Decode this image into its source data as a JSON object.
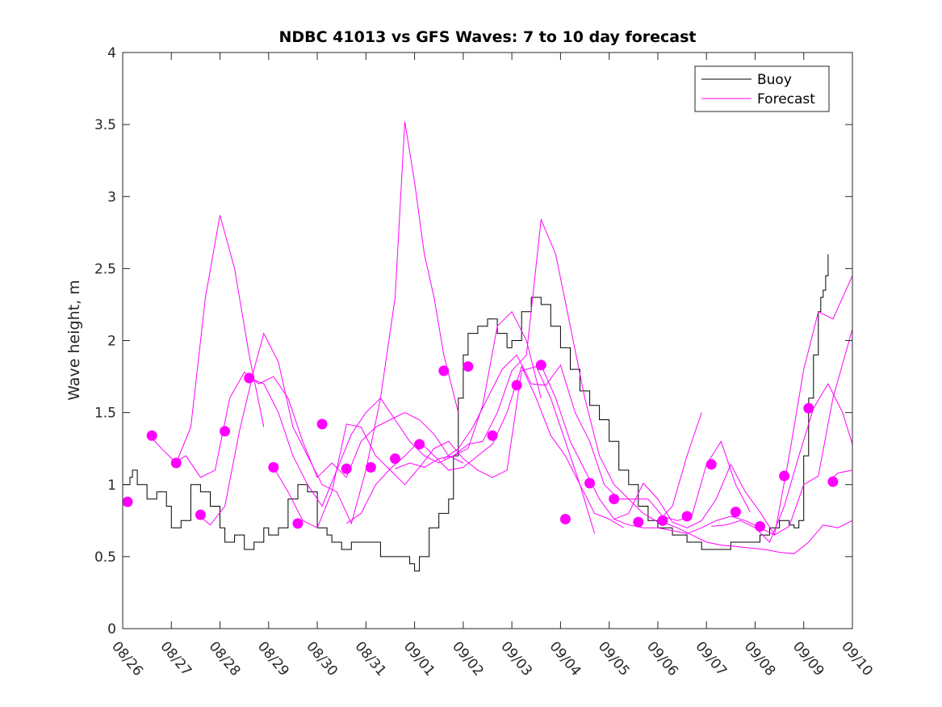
{
  "chart_data": {
    "type": "line",
    "title": "NDBC 41013 vs GFS Waves: 7 to 10 day forecast",
    "xlabel": "",
    "ylabel": "Wave height, m",
    "xlim_days": [
      0,
      15
    ],
    "ylim": [
      0,
      4
    ],
    "yticks": [
      0,
      0.5,
      1,
      1.5,
      2,
      2.5,
      3,
      3.5,
      4
    ],
    "ytick_labels": [
      "0",
      "0.5",
      "1",
      "1.5",
      "2",
      "2.5",
      "3",
      "3.5",
      "4"
    ],
    "xtick_labels": [
      "08/26",
      "08/27",
      "08/28",
      "08/29",
      "08/30",
      "08/31",
      "09/01",
      "09/02",
      "09/03",
      "09/04",
      "09/05",
      "09/06",
      "09/07",
      "09/08",
      "09/09",
      "09/10"
    ],
    "grid": false,
    "legend": {
      "placement": "top-right",
      "entries": [
        {
          "label": "Buoy",
          "color": "#000000"
        },
        {
          "label": "Forecast",
          "color": "#ff00ff"
        }
      ]
    },
    "colors": {
      "buoy": "#000000",
      "forecast": "#ff00ff",
      "axis": "#262626"
    },
    "series": [
      {
        "name": "Buoy",
        "x_days": [
          0,
          0.15,
          0.2,
          0.3,
          0.4,
          0.5,
          0.7,
          0.9,
          1.0,
          1.2,
          1.4,
          1.6,
          1.8,
          2.0,
          2.1,
          2.3,
          2.5,
          2.7,
          2.9,
          3.0,
          3.2,
          3.4,
          3.6,
          3.8,
          4.0,
          4.2,
          4.3,
          4.5,
          4.7,
          5.0,
          5.3,
          5.6,
          5.8,
          5.9,
          6.0,
          6.1,
          6.3,
          6.5,
          6.6,
          6.7,
          6.8,
          6.9,
          7.0,
          7.1,
          7.3,
          7.5,
          7.7,
          7.9,
          8.0,
          8.2,
          8.4,
          8.6,
          8.8,
          9.0,
          9.2,
          9.4,
          9.6,
          9.8,
          10.0,
          10.2,
          10.4,
          10.6,
          10.8,
          11.0,
          11.3,
          11.6,
          11.9,
          12.2,
          12.5,
          12.8,
          13.1,
          13.3,
          13.5,
          13.6,
          13.7,
          13.8,
          13.9,
          14.0,
          14.1,
          14.2,
          14.3,
          14.35,
          14.4,
          14.45,
          14.5
        ],
        "y": [
          1.0,
          1.05,
          1.1,
          1.0,
          1.0,
          0.9,
          0.95,
          0.85,
          0.7,
          0.75,
          1.0,
          0.95,
          0.85,
          0.7,
          0.6,
          0.65,
          0.55,
          0.6,
          0.7,
          0.65,
          0.7,
          0.9,
          1.0,
          0.95,
          0.7,
          0.65,
          0.6,
          0.55,
          0.6,
          0.6,
          0.5,
          0.5,
          0.5,
          0.45,
          0.4,
          0.5,
          0.7,
          0.8,
          0.8,
          0.9,
          1.2,
          1.6,
          1.9,
          2.05,
          2.1,
          2.15,
          2.05,
          1.95,
          2.0,
          2.2,
          2.3,
          2.25,
          2.1,
          1.95,
          1.8,
          1.65,
          1.55,
          1.45,
          1.3,
          1.1,
          1.0,
          0.85,
          0.75,
          0.7,
          0.65,
          0.6,
          0.55,
          0.55,
          0.6,
          0.6,
          0.65,
          0.7,
          0.75,
          0.75,
          0.72,
          0.7,
          0.75,
          1.2,
          1.6,
          1.9,
          2.2,
          2.3,
          2.35,
          2.45,
          2.6
        ]
      },
      {
        "name": "Forecast run 1",
        "x_days": [
          0.55,
          0.8,
          1.1,
          1.4,
          1.7,
          2.0,
          2.3,
          2.6,
          2.9
        ],
        "y": [
          1.34,
          1.25,
          1.15,
          1.4,
          2.3,
          2.87,
          2.5,
          1.9,
          1.4
        ]
      },
      {
        "name": "Forecast run 2",
        "x_days": [
          1.05,
          1.3,
          1.6,
          1.9,
          2.2,
          2.5,
          2.8,
          3.1,
          3.4,
          3.7,
          4.0,
          4.3,
          4.6,
          4.9,
          5.2,
          5.5,
          5.8,
          6.1,
          6.4,
          6.7,
          7.0
        ],
        "y": [
          1.15,
          1.2,
          1.05,
          1.1,
          1.6,
          1.78,
          1.7,
          1.75,
          1.6,
          1.3,
          1.05,
          1.15,
          1.05,
          1.3,
          1.4,
          1.45,
          1.5,
          1.45,
          1.35,
          1.2,
          1.15
        ]
      },
      {
        "name": "Forecast run 3",
        "x_days": [
          1.55,
          1.8,
          2.1,
          2.4,
          2.7,
          2.9,
          3.2,
          3.5,
          3.8,
          4.1,
          4.4,
          4.7,
          5.0,
          5.3,
          5.6,
          5.8,
          6.0,
          6.2,
          6.4,
          6.6,
          6.9
        ],
        "y": [
          0.79,
          0.72,
          0.85,
          1.37,
          1.8,
          2.05,
          1.85,
          1.4,
          1.2,
          1.0,
          0.95,
          0.73,
          1.1,
          1.6,
          2.3,
          3.52,
          3.1,
          2.6,
          2.3,
          1.9,
          1.5
        ]
      },
      {
        "name": "Forecast run 4",
        "x_days": [
          2.6,
          2.9,
          3.2,
          3.5,
          3.8,
          4.1,
          4.4,
          4.7,
          5.0,
          5.3,
          5.6,
          5.9,
          6.2,
          6.5,
          6.8,
          7.1,
          7.4,
          7.7,
          8.0,
          8.3,
          8.6
        ],
        "y": [
          1.74,
          1.7,
          1.5,
          1.2,
          1.0,
          0.85,
          1.1,
          1.35,
          1.5,
          1.6,
          1.45,
          1.3,
          1.2,
          1.15,
          1.2,
          1.25,
          1.55,
          2.1,
          2.2,
          2.0,
          1.6
        ]
      },
      {
        "name": "Forecast run 5",
        "x_days": [
          3.1,
          3.4,
          3.7,
          4.0,
          4.3,
          4.6,
          4.9,
          5.2,
          5.5,
          5.8,
          6.1,
          6.4,
          6.7,
          7.0,
          7.3,
          7.6,
          7.9,
          8.2,
          8.5,
          8.8,
          9.1,
          9.4,
          9.7
        ],
        "y": [
          1.12,
          0.95,
          0.75,
          0.7,
          0.95,
          1.42,
          1.4,
          1.2,
          1.1,
          1.0,
          1.12,
          1.25,
          1.3,
          1.18,
          1.1,
          1.05,
          1.1,
          1.79,
          1.82,
          1.6,
          1.3,
          1.0,
          0.66
        ]
      },
      {
        "name": "Forecast run 6",
        "x_days": [
          4.6,
          4.9,
          5.2,
          5.5,
          5.8,
          6.1,
          6.4,
          6.7,
          7.0,
          7.3,
          7.6,
          7.9,
          8.2,
          8.5,
          8.8,
          9.1,
          9.4,
          9.7,
          10.0,
          10.3
        ],
        "y": [
          0.73,
          0.8,
          1.0,
          1.11,
          1.2,
          1.3,
          1.2,
          1.1,
          1.12,
          1.2,
          1.28,
          1.5,
          1.82,
          1.6,
          1.34,
          1.2,
          1.0,
          0.8,
          0.76,
          0.7
        ]
      },
      {
        "name": "Forecast run 7",
        "x_days": [
          5.6,
          5.9,
          6.2,
          6.5,
          6.8,
          7.1,
          7.4,
          7.7,
          8.0,
          8.3,
          8.6,
          8.9,
          9.2,
          9.5,
          9.8,
          10.1,
          10.4,
          10.7,
          11.0,
          11.3,
          11.6,
          11.9
        ],
        "y": [
          1.11,
          1.15,
          1.12,
          1.18,
          1.2,
          1.28,
          1.3,
          1.5,
          1.79,
          1.9,
          2.84,
          2.6,
          2.1,
          1.6,
          1.2,
          1.0,
          0.9,
          0.8,
          0.74,
          0.85,
          1.2,
          1.5
        ]
      },
      {
        "name": "Forecast run 8",
        "x_days": [
          6.6,
          6.9,
          7.2,
          7.5,
          7.8,
          8.1,
          8.4,
          8.7,
          9.0,
          9.3,
          9.6,
          9.9,
          10.2,
          10.5,
          10.8,
          11.1,
          11.4,
          11.7,
          12.0,
          12.3,
          12.6,
          12.9
        ],
        "y": [
          1.18,
          1.25,
          1.4,
          1.6,
          1.8,
          1.9,
          1.7,
          1.69,
          1.83,
          1.5,
          1.3,
          1.0,
          0.9,
          0.9,
          0.9,
          0.78,
          0.75,
          0.78,
          1.14,
          1.3,
          1.0,
          0.81
        ]
      },
      {
        "name": "Forecast run 9",
        "x_days": [
          8.6,
          8.9,
          9.2,
          9.5,
          9.8,
          10.1,
          10.4,
          10.7,
          11.0,
          11.3,
          11.6,
          11.9,
          12.2,
          12.5,
          12.8,
          13.1,
          13.4,
          13.7,
          14.0,
          14.3,
          14.6,
          15.0
        ],
        "y": [
          1.83,
          1.6,
          1.3,
          1.1,
          0.9,
          0.76,
          0.8,
          1.01,
          0.9,
          0.74,
          0.7,
          0.75,
          0.9,
          1.14,
          0.95,
          0.81,
          0.65,
          0.71,
          1.0,
          1.06,
          1.6,
          2.08
        ]
      },
      {
        "name": "Forecast run 10",
        "x_days": [
          10.1,
          10.4,
          10.7,
          11.0,
          11.3,
          11.6,
          11.9,
          12.2,
          12.5,
          12.8,
          13.1,
          13.4,
          13.7,
          14.0,
          14.3,
          14.6,
          15.0
        ],
        "y": [
          0.76,
          0.72,
          0.7,
          0.7,
          0.68,
          0.66,
          0.7,
          0.75,
          0.78,
          0.75,
          0.7,
          0.65,
          1.2,
          1.8,
          2.2,
          2.15,
          2.45
        ]
      },
      {
        "name": "Forecast run 11",
        "x_days": [
          11.1,
          11.4,
          11.7,
          12.0,
          12.3,
          12.6,
          12.9,
          13.2,
          13.5,
          13.8,
          14.1,
          14.4,
          14.7,
          15.0
        ],
        "y": [
          0.74,
          0.7,
          0.65,
          0.6,
          0.58,
          0.57,
          0.56,
          0.55,
          0.53,
          0.52,
          0.6,
          0.72,
          0.7,
          0.75
        ]
      },
      {
        "name": "Forecast run 12",
        "x_days": [
          12.1,
          12.4,
          12.7,
          13.0,
          13.3,
          13.6,
          13.9,
          14.2,
          14.5,
          14.8,
          15.0
        ],
        "y": [
          0.71,
          0.72,
          0.75,
          0.7,
          0.6,
          0.85,
          1.2,
          1.53,
          1.7,
          1.5,
          1.28
        ]
      },
      {
        "name": "Forecast run 13",
        "x_days": [
          14.5,
          14.7,
          15.0
        ],
        "y": [
          1.02,
          1.08,
          1.1
        ]
      }
    ],
    "forecast_markers": {
      "x_days": [
        0.1,
        0.6,
        1.1,
        1.6,
        2.1,
        2.6,
        3.1,
        3.6,
        4.1,
        4.6,
        5.1,
        5.6,
        6.1,
        6.6,
        7.1,
        7.6,
        8.1,
        8.6,
        9.1,
        9.6,
        10.1,
        10.6,
        11.1,
        11.6,
        12.1,
        12.6,
        13.1,
        13.6,
        14.1,
        14.6
      ],
      "y": [
        0.88,
        1.34,
        1.15,
        0.79,
        1.37,
        1.74,
        1.12,
        0.73,
        1.42,
        1.11,
        1.12,
        1.18,
        1.28,
        1.79,
        1.82,
        1.34,
        1.69,
        1.83,
        0.76,
        1.01,
        0.9,
        0.74,
        0.75,
        0.78,
        1.14,
        0.81,
        0.71,
        1.06,
        1.53,
        1.02
      ]
    }
  }
}
